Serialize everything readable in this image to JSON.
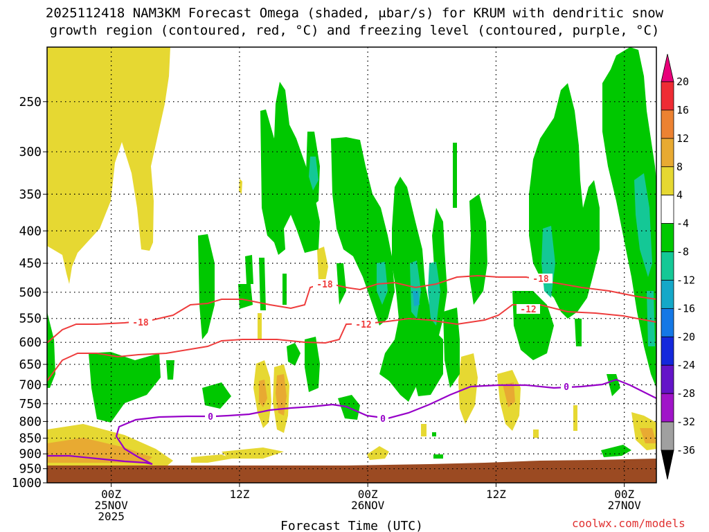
{
  "title_line1": "2025112418 NAM3KM Forecast Omega (shaded, μbar/s) for KRUM with dendritic snow",
  "title_line2": "growth region (contoured, red, °C) and freezing level (contoured, purple, °C)",
  "credit": "coolwx.com/models",
  "chart_data": {
    "type": "heatmap",
    "xlabel": "Forecast Time (UTC)",
    "ylabel": "",
    "y_scale": "log",
    "ylim": [
      1000,
      205
    ],
    "x_range": [
      "2025-11-24T18:00Z",
      "2025-11-27T03:00Z"
    ],
    "y_ticks": [
      250,
      300,
      350,
      400,
      450,
      500,
      550,
      600,
      650,
      700,
      750,
      800,
      850,
      900,
      950,
      1000
    ],
    "x_ticks": [
      {
        "time": "2025-11-25T00:00Z",
        "label": "00Z",
        "sub": [
          "25NOV",
          "2025"
        ]
      },
      {
        "time": "2025-11-25T12:00Z",
        "label": "12Z",
        "sub": []
      },
      {
        "time": "2025-11-26T00:00Z",
        "label": "00Z",
        "sub": [
          "26NOV"
        ]
      },
      {
        "time": "2025-11-26T12:00Z",
        "label": "12Z",
        "sub": []
      },
      {
        "time": "2025-11-27T00:00Z",
        "label": "00Z",
        "sub": [
          "27NOV"
        ]
      }
    ],
    "grid": true,
    "colorbar": {
      "units": "μbar/s",
      "labels": [
        "20",
        "16",
        "12",
        "8",
        "4",
        "-4",
        "-8",
        "-12",
        "-16",
        "-20",
        "-24",
        "-28",
        "-32",
        "-36"
      ],
      "bins": [
        {
          "range": "> 20",
          "color": "#e8007a"
        },
        {
          "range": "16 to 20",
          "color": "#ee2c34"
        },
        {
          "range": "12 to 16",
          "color": "#ec8232"
        },
        {
          "range": "8 to 12",
          "color": "#e8aa32"
        },
        {
          "range": "4 to 8",
          "color": "#e6d832"
        },
        {
          "range": "-4 to 4",
          "color": "#ffffff"
        },
        {
          "range": "-8 to -4",
          "color": "#00c800"
        },
        {
          "range": "-12 to -8",
          "color": "#14c896"
        },
        {
          "range": "-16 to -12",
          "color": "#14a8c8"
        },
        {
          "range": "-20 to -16",
          "color": "#1478e6"
        },
        {
          "range": "-24 to -20",
          "color": "#1428dc"
        },
        {
          "range": "-28 to -24",
          "color": "#6414c8"
        },
        {
          "range": "-32 to -28",
          "color": "#a014c8"
        },
        {
          "range": "-36 to -32",
          "color": "#a0a0a0"
        },
        {
          "range": "< -36",
          "color": "#000000"
        }
      ]
    },
    "contours": {
      "dendritic": {
        "color": "#ee3c3c",
        "levels": [
          "-18",
          "-12"
        ]
      },
      "freezing": {
        "color": "#9600c8",
        "levels": [
          "0"
        ]
      }
    },
    "terrain_color": "#9b4a22",
    "colors": {
      "yellow": "#e6d832",
      "orange": "#e8aa32",
      "green": "#00c800",
      "teal": "#14c896",
      "cyan": "#14a8c8",
      "terrain": "#9b4a22"
    }
  }
}
